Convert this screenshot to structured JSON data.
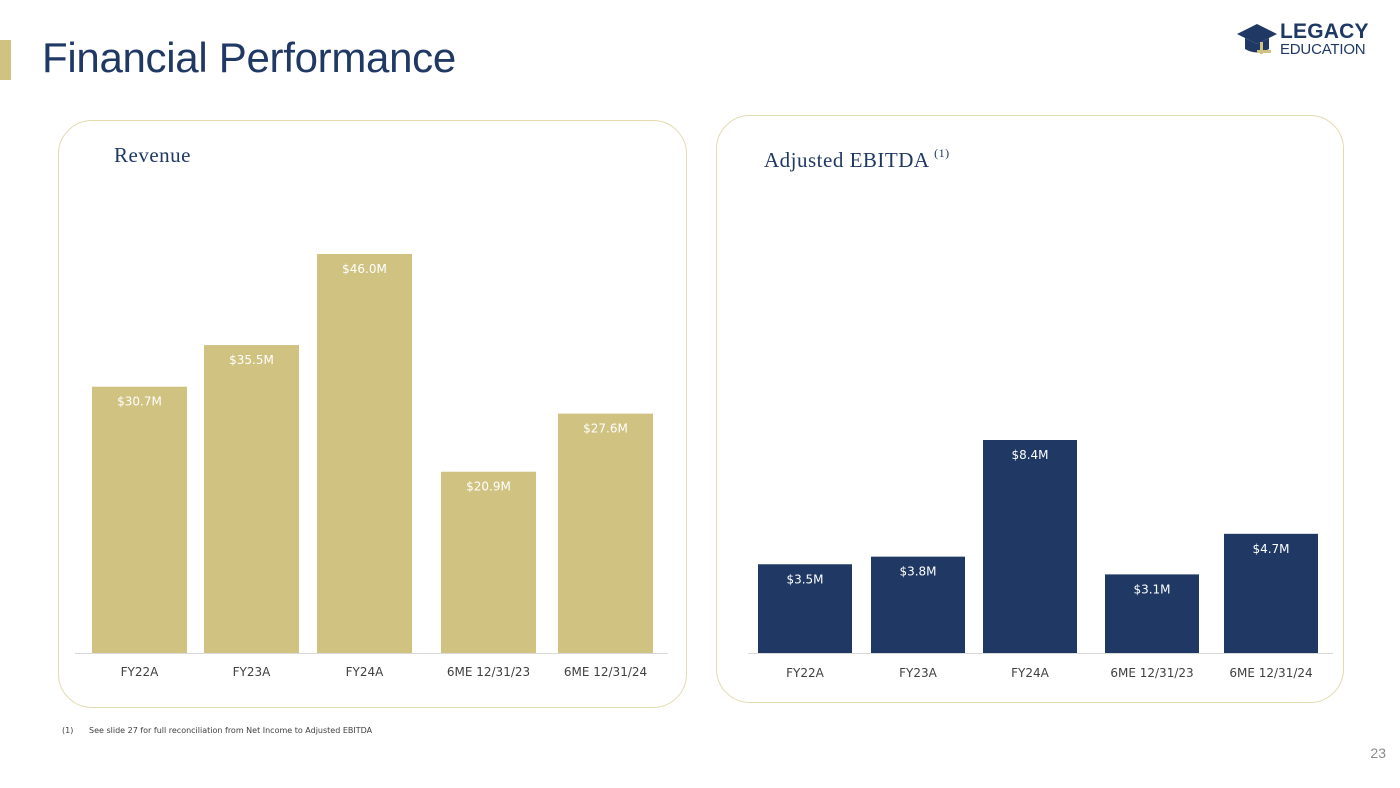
{
  "header": {
    "title": "Financial Performance",
    "logo_line1": "LEGACY",
    "logo_line2": "EDUCATION"
  },
  "colors": {
    "navy": "#1f3864",
    "gold": "#d0c281",
    "panel_border": "#e3dab0"
  },
  "chart_data": [
    {
      "type": "bar",
      "title": "Revenue",
      "categories": [
        "FY22A",
        "FY23A",
        "FY24A",
        "6ME 12/31/23",
        "6ME 12/31/24"
      ],
      "values": [
        30.7,
        35.5,
        46.0,
        20.9,
        27.6
      ],
      "labels": [
        "$30.7M",
        "$35.5M",
        "$46.0M",
        "$20.9M",
        "$27.6M"
      ],
      "unit": "$M",
      "ylim": [
        0,
        46.0
      ],
      "color": "#d0c281",
      "grid": false
    },
    {
      "type": "bar",
      "title": "Adjusted EBITDA",
      "title_footnote": "(1)",
      "categories": [
        "FY22A",
        "FY23A",
        "FY24A",
        "6ME 12/31/23",
        "6ME 12/31/24"
      ],
      "values": [
        3.5,
        3.8,
        8.4,
        3.1,
        4.7
      ],
      "labels": [
        "$3.5M",
        "$3.8M",
        "$8.4M",
        "$3.1M",
        "$4.7M"
      ],
      "unit": "$M",
      "ylim": [
        0,
        8.4
      ],
      "color": "#1f3864",
      "grid": false
    }
  ],
  "footnote": {
    "number": "(1)",
    "text": "See slide 27 for full reconciliation from Net Income to Adjusted EBITDA"
  },
  "page_number": "23"
}
